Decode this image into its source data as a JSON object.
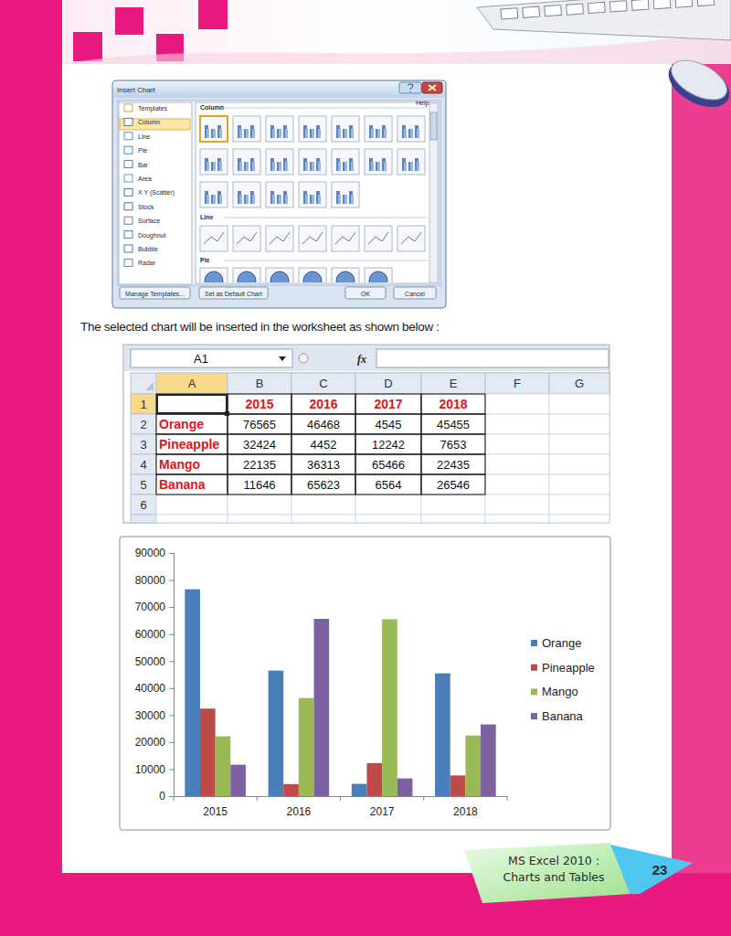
{
  "dialog": {
    "title": "Insert Chart",
    "help": "Help",
    "chart_types": [
      "Templates",
      "Column",
      "Line",
      "Pie",
      "Bar",
      "Area",
      "X Y (Scatter)",
      "Stock",
      "Surface",
      "Doughnut",
      "Bubble",
      "Radar"
    ],
    "gallery_sections": [
      "Column",
      "Line",
      "Pie"
    ],
    "buttons": [
      "Manage Templates...",
      "Set as Default Chart",
      "OK",
      "Cancel"
    ]
  },
  "caption": "The selected chart will be inserted in the worksheet as shown below :",
  "sheet": {
    "name_box": "A1",
    "formula_label": "fx",
    "columns": [
      "A",
      "B",
      "C",
      "D",
      "E",
      "F",
      "G"
    ],
    "row_numbers": [
      1,
      2,
      3,
      4,
      5,
      6
    ],
    "rows": [
      [
        null,
        2015,
        2016,
        2017,
        2018
      ],
      [
        "Orange",
        76565,
        46468,
        4545,
        45455
      ],
      [
        "Pineapple",
        32424,
        4452,
        12242,
        7653
      ],
      [
        "Mango",
        22135,
        36313,
        65466,
        22435
      ],
      [
        "Banana",
        11646,
        65623,
        6564,
        26546
      ]
    ]
  },
  "chart_data": {
    "type": "bar",
    "categories": [
      "2015",
      "2016",
      "2017",
      "2018"
    ],
    "series": [
      {
        "name": "Orange",
        "color": "#4a7ebb",
        "values": [
          76565,
          46468,
          4545,
          45455
        ]
      },
      {
        "name": "Pineapple",
        "color": "#be4b48",
        "values": [
          32424,
          4452,
          12242,
          7653
        ]
      },
      {
        "name": "Mango",
        "color": "#98b954",
        "values": [
          22135,
          36313,
          65466,
          22435
        ]
      },
      {
        "name": "Banana",
        "color": "#7d60a0",
        "values": [
          11646,
          65623,
          6564,
          26546
        ]
      }
    ],
    "ylim": [
      0,
      90000
    ],
    "yticks": [
      0,
      10000,
      20000,
      30000,
      40000,
      50000,
      60000,
      70000,
      80000,
      90000
    ],
    "grid": false,
    "legend": "right"
  },
  "footer": {
    "chapter": [
      "MS Excel 2010 :",
      "Charts and Tables"
    ],
    "page": 23
  }
}
